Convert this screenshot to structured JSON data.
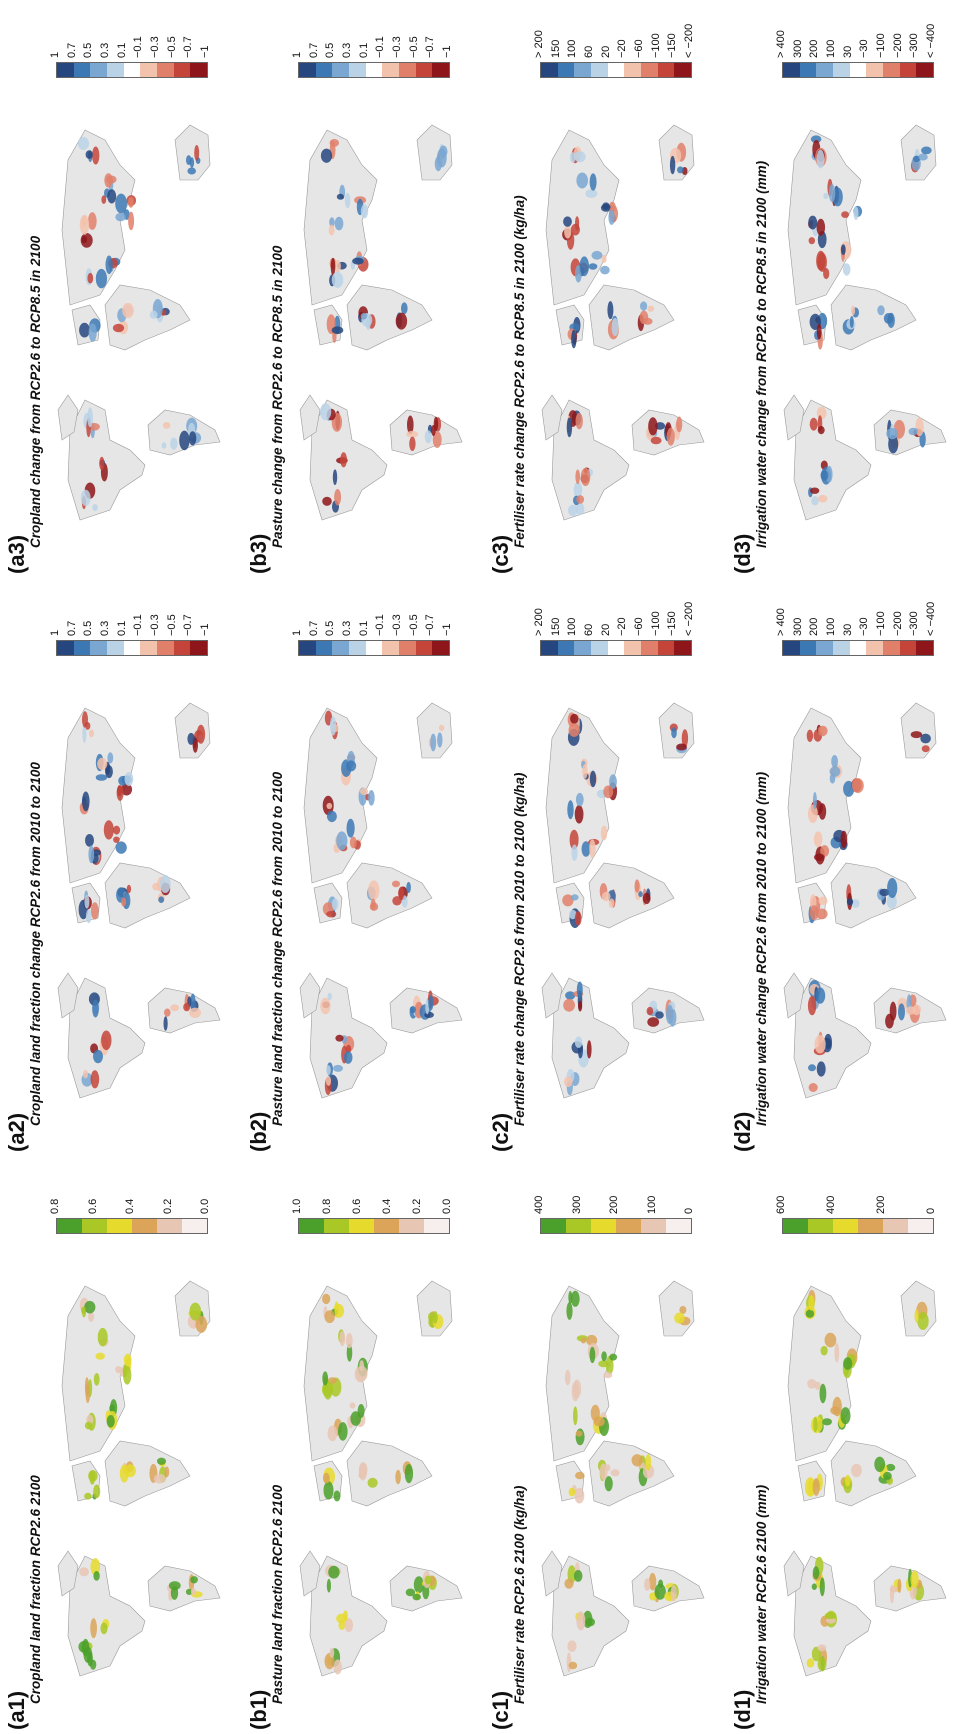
{
  "panels": [
    {
      "label": "(a1)",
      "title": "Cropland land fraction RCP2.6 2100",
      "cmap": "green",
      "colors": [
        "#4aa02a",
        "#a9c826",
        "#e6da2c",
        "#dba458",
        "#e8c6b4",
        "#f7eeee"
      ],
      "ticks": [
        "0.8",
        "0.6",
        "0.4",
        "0.2",
        "0.0"
      ]
    },
    {
      "label": "(a2)",
      "title": "Cropland land fraction change RCP2.6 from 2010 to 2100",
      "cmap": "div",
      "colors": [
        "#25467f",
        "#3c78b4",
        "#79a7d1",
        "#bad2e6",
        "#ffffff",
        "#f3c2ad",
        "#e0806a",
        "#c4443a",
        "#8e1519"
      ],
      "ticks": [
        "1",
        "0.7",
        "0.5",
        "0.3",
        "0.1",
        "−0.1",
        "−0.3",
        "−0.5",
        "−0.7",
        "−1"
      ]
    },
    {
      "label": "(a3)",
      "title": "Cropland change from RCP2.6 to RCP8.5 in 2100",
      "cmap": "div",
      "colors": [
        "#25467f",
        "#3c78b4",
        "#79a7d1",
        "#bad2e6",
        "#ffffff",
        "#f3c2ad",
        "#e0806a",
        "#c4443a",
        "#8e1519"
      ],
      "ticks": [
        "1",
        "0.7",
        "0.5",
        "0.3",
        "0.1",
        "−0.1",
        "−0.3",
        "−0.5",
        "−0.7",
        "−1"
      ]
    },
    {
      "label": "(b1)",
      "title": "Pasture land fraction RCP2.6 2100",
      "cmap": "green",
      "colors": [
        "#4aa02a",
        "#a9c826",
        "#e6da2c",
        "#dba458",
        "#e8c6b4",
        "#f7eeee"
      ],
      "ticks": [
        "1.0",
        "0.8",
        "0.6",
        "0.4",
        "0.2",
        "0.0"
      ]
    },
    {
      "label": "(b2)",
      "title": "Pasture land fraction change RCP2.6 from 2010 to 2100",
      "cmap": "div",
      "colors": [
        "#25467f",
        "#3c78b4",
        "#79a7d1",
        "#bad2e6",
        "#ffffff",
        "#f3c2ad",
        "#e0806a",
        "#c4443a",
        "#8e1519"
      ],
      "ticks": [
        "1",
        "0.7",
        "0.5",
        "0.3",
        "0.1",
        "−0.1",
        "−0.3",
        "−0.5",
        "−0.7",
        "−1"
      ]
    },
    {
      "label": "(b3)",
      "title": "Pasture change from RCP2.6 to RCP8.5 in 2100",
      "cmap": "div",
      "colors": [
        "#25467f",
        "#3c78b4",
        "#79a7d1",
        "#bad2e6",
        "#ffffff",
        "#f3c2ad",
        "#e0806a",
        "#c4443a",
        "#8e1519"
      ],
      "ticks": [
        "1",
        "0.7",
        "0.5",
        "0.3",
        "0.1",
        "−0.1",
        "−0.3",
        "−0.5",
        "−0.7",
        "−1"
      ]
    },
    {
      "label": "(c1)",
      "title": "Fertiliser rate RCP2.6 2100 (kg/ha)",
      "cmap": "green",
      "colors": [
        "#4aa02a",
        "#a9c826",
        "#e6da2c",
        "#dba458",
        "#e8c6b4",
        "#f7eeee"
      ],
      "ticks": [
        "400",
        "300",
        "200",
        "100",
        "0"
      ]
    },
    {
      "label": "(c2)",
      "title": "Fertiliser rate change RCP2.6 from 2010 to 2100 (kg/ha)",
      "cmap": "div",
      "colors": [
        "#25467f",
        "#3c78b4",
        "#79a7d1",
        "#bad2e6",
        "#ffffff",
        "#f3c2ad",
        "#e0806a",
        "#c4443a",
        "#8e1519"
      ],
      "ticks": [
        "> 200",
        "150",
        "100",
        "60",
        "20",
        "−20",
        "−60",
        "−100",
        "−150",
        "< −200"
      ]
    },
    {
      "label": "(c3)",
      "title": "Fertiliser rate change RCP2.6 to RCP8.5 in 2100 (kg/ha)",
      "cmap": "div",
      "colors": [
        "#25467f",
        "#3c78b4",
        "#79a7d1",
        "#bad2e6",
        "#ffffff",
        "#f3c2ad",
        "#e0806a",
        "#c4443a",
        "#8e1519"
      ],
      "ticks": [
        "> 200",
        "150",
        "100",
        "60",
        "20",
        "−20",
        "−60",
        "−100",
        "−150",
        "< −200"
      ]
    },
    {
      "label": "(d1)",
      "title": "Irrigation water RCP2.6 2100 (mm)",
      "cmap": "green",
      "colors": [
        "#4aa02a",
        "#a9c826",
        "#e6da2c",
        "#dba458",
        "#e8c6b4",
        "#f7eeee"
      ],
      "ticks": [
        "600",
        "400",
        "200",
        "0"
      ]
    },
    {
      "label": "(d2)",
      "title": "Irrigation water change RCP2.6 from 2010 to 2100 (mm)",
      "cmap": "div",
      "colors": [
        "#25467f",
        "#3c78b4",
        "#79a7d1",
        "#bad2e6",
        "#ffffff",
        "#f3c2ad",
        "#e0806a",
        "#c4443a",
        "#8e1519"
      ],
      "ticks": [
        "> 400",
        "300",
        "200",
        "100",
        "30",
        "−30",
        "−100",
        "−200",
        "−300",
        "< −400"
      ]
    },
    {
      "label": "(d3)",
      "title": "Irrigation water change from RCP2.6 to RCP8.5 in 2100 (mm)",
      "cmap": "div",
      "colors": [
        "#25467f",
        "#3c78b4",
        "#79a7d1",
        "#bad2e6",
        "#ffffff",
        "#f3c2ad",
        "#e0806a",
        "#c4443a",
        "#8e1519"
      ],
      "ticks": [
        "> 400",
        "300",
        "200",
        "100",
        "30",
        "−30",
        "−100",
        "−200",
        "−300",
        "< −400"
      ]
    }
  ]
}
